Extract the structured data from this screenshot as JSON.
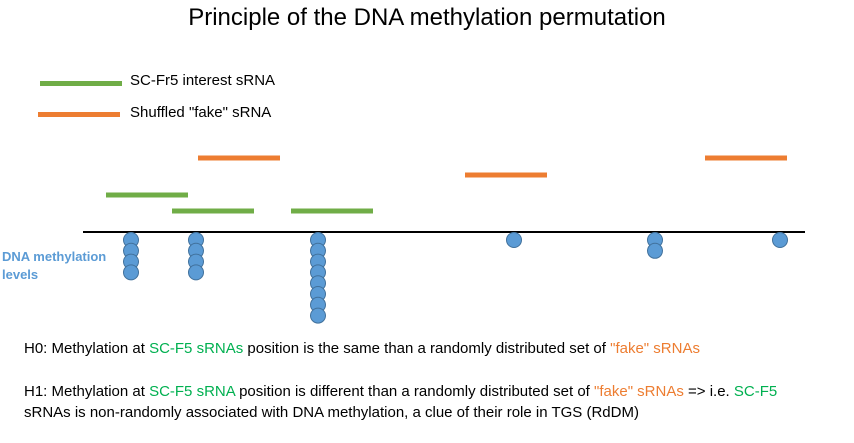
{
  "title": "Principle of the DNA methylation permutation",
  "legend": {
    "interest": {
      "label": "SC-Fr5 interest sRNA",
      "color": "#70ad47"
    },
    "fake": {
      "label": "Shuffled \"fake\" sRNA",
      "color": "#ed7d31"
    }
  },
  "axis_label_line1": "DNA methylation",
  "axis_label_line2": "levels",
  "axis_label_color": "#5b9bd5",
  "dot_color": "#5b9bd5",
  "methylation_dot_counts": [
    4,
    4,
    8,
    1,
    2,
    1
  ],
  "h0": {
    "p1": "H0: Methylation at ",
    "p2": "SC-F5 sRNAs",
    "p3": " position is the same than a randomly distributed set of ",
    "p4": "\"fake\" sRNAs"
  },
  "h1": {
    "p1": "H1: Methylation at ",
    "p2": "SC-F5 sRNA",
    "p3": " position is different than a randomly distributed set of ",
    "p4": "\"fake\" sRNAs",
    "p5": " => i.e. ",
    "p6": "SC-F5",
    "p7": "sRNAs  is non-randomly associated with DNA methylation, a clue of their role in TGS (RdDM)"
  }
}
